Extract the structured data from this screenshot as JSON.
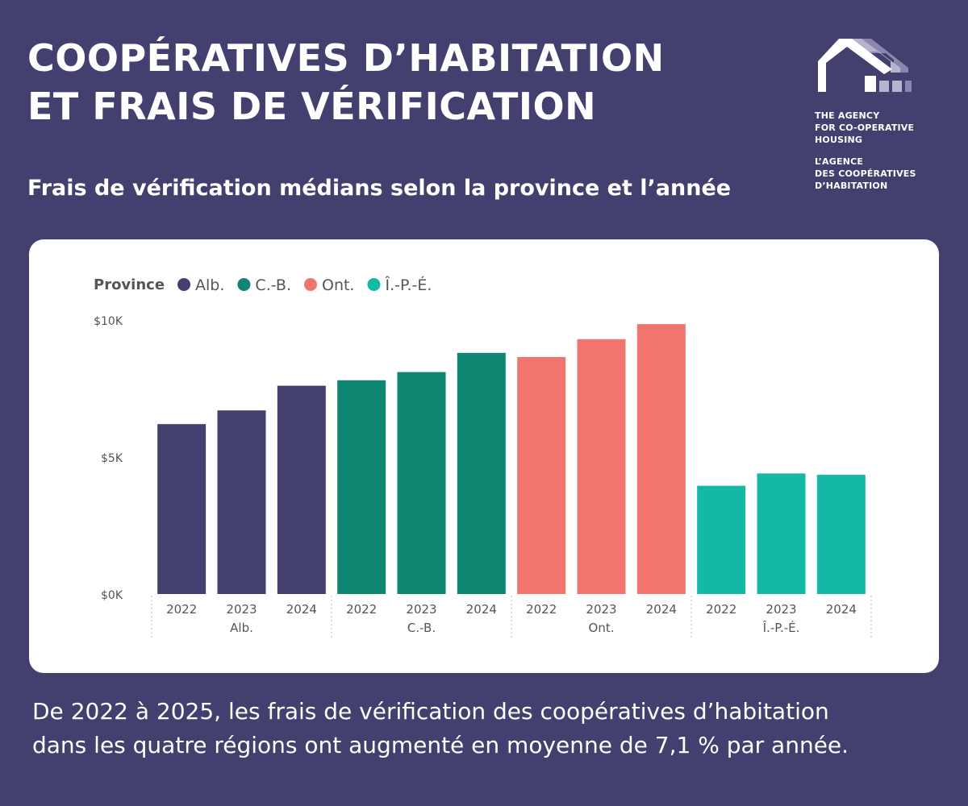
{
  "header": {
    "title_line1": "COOPÉRATIVES D’HABITATION",
    "title_line2": "ET FRAIS DE VÉRIFICATION",
    "subtitle": "Frais de vérification médians selon la province et l’année"
  },
  "logo": {
    "icon": "house-logo-icon",
    "lines_en": [
      "THE AGENCY",
      "FOR CO-OPERATIVE",
      "HOUSING"
    ],
    "lines_fr": [
      "L’AGENCE",
      "DES COOPÉRATIVES",
      "D’HABITATION"
    ]
  },
  "footer": {
    "line1": "De 2022 à 2025, les frais de vérification des coopératives d’habitation",
    "line2": "dans les quatre régions ont augmenté en moyenne de 7,1 % par année."
  },
  "colors": {
    "background": "#433f6e",
    "card": "#ffffff",
    "alb": "#433f6e",
    "cb": "#0e8672",
    "ont": "#f2746e",
    "ipe": "#14b8a6"
  },
  "chart_data": {
    "type": "bar",
    "legend_title": "Province",
    "legend_position": "top-left",
    "grid": false,
    "ylim": [
      0,
      10000
    ],
    "yticks": [
      {
        "value": 0,
        "label": "$0K"
      },
      {
        "value": 5000,
        "label": "$5K"
      },
      {
        "value": 10000,
        "label": "$10K"
      }
    ],
    "series": [
      {
        "name": "Alb.",
        "group_label": "Alb.",
        "color": "#433f6e",
        "categories": [
          "2022",
          "2023",
          "2024"
        ],
        "values": [
          6200,
          6700,
          7600
        ]
      },
      {
        "name": "C.-B.",
        "group_label": "C.-B.",
        "color": "#0e8672",
        "categories": [
          "2022",
          "2023",
          "2024"
        ],
        "values": [
          7800,
          8100,
          8800
        ]
      },
      {
        "name": "Ont.",
        "group_label": "Ont.",
        "color": "#f2746e",
        "categories": [
          "2022",
          "2023",
          "2024"
        ],
        "values": [
          8650,
          9300,
          9850
        ]
      },
      {
        "name": "Î.-P.-É.",
        "group_label": "Î.-P.-É.",
        "color": "#14b8a6",
        "categories": [
          "2022",
          "2023",
          "2024"
        ],
        "values": [
          3950,
          4400,
          4350
        ]
      }
    ]
  }
}
